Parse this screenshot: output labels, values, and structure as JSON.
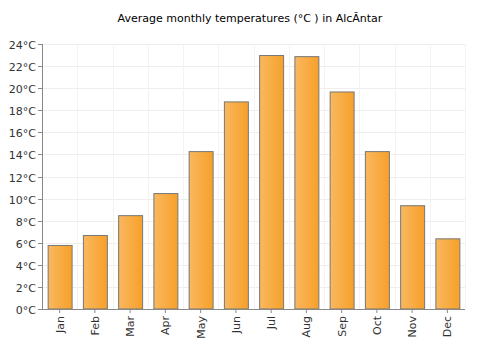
{
  "chart_data": {
    "type": "bar",
    "title": "Average monthly temperatures (°C ) in AlcĂntar",
    "categories": [
      "Jan",
      "Feb",
      "Mar",
      "Apr",
      "May",
      "Jun",
      "Jul",
      "Aug",
      "Sep",
      "Oct",
      "Nov",
      "Dec"
    ],
    "values": [
      5.8,
      6.7,
      8.5,
      10.5,
      14.3,
      18.8,
      23.0,
      22.9,
      19.7,
      14.3,
      9.4,
      6.4
    ],
    "color": "#f7a02a",
    "ylim": [
      0,
      24
    ],
    "yticks": [
      {
        "value": 0,
        "label": "0°C"
      },
      {
        "value": 2,
        "label": "2°C"
      },
      {
        "value": 4,
        "label": "4°C"
      },
      {
        "value": 6,
        "label": "6°C"
      },
      {
        "value": 8,
        "label": "8°C"
      },
      {
        "value": 10,
        "label": "10°C"
      },
      {
        "value": 12,
        "label": "12°C"
      },
      {
        "value": 14,
        "label": "14°C"
      },
      {
        "value": 16,
        "label": "16°C"
      },
      {
        "value": 18,
        "label": "18°C"
      },
      {
        "value": 20,
        "label": "20°C"
      },
      {
        "value": 22,
        "label": "22°C"
      },
      {
        "value": 24,
        "label": "24°C"
      }
    ],
    "grid": true
  }
}
